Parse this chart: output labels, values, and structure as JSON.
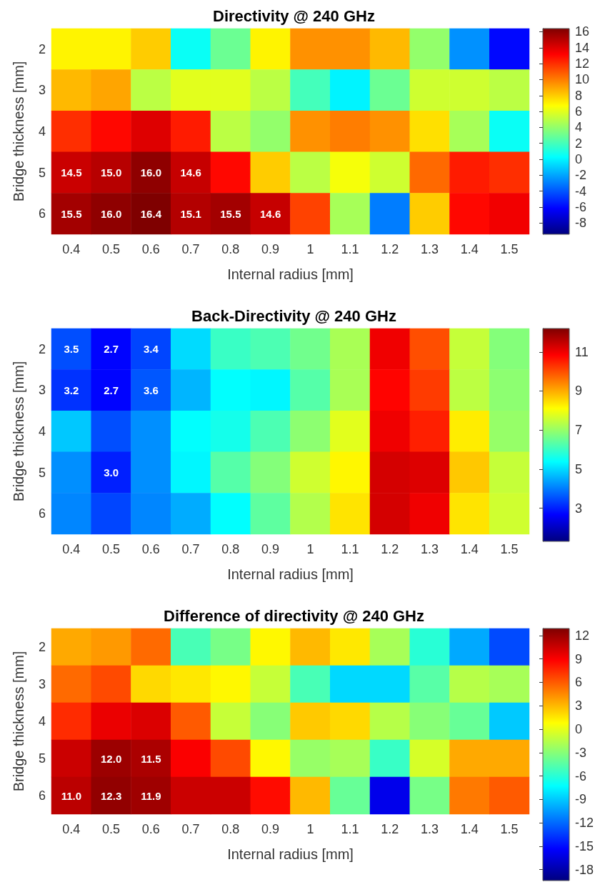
{
  "chart_data": [
    {
      "type": "heatmap",
      "title": "Directivity @ 240 GHz",
      "xlabel": "Internal radius [mm]",
      "ylabel": "Bridge thickness [mm]",
      "categories": [
        "0.4",
        "0.5",
        "0.6",
        "0.7",
        "0.8",
        "0.9",
        "1",
        "1.1",
        "1.2",
        "1.3",
        "1.4",
        "1.5"
      ],
      "y_categories": [
        "2",
        "3",
        "4",
        "5",
        "6"
      ],
      "cells": [
        [
          7,
          7,
          8,
          0.5,
          3,
          7,
          9.5,
          9.5,
          8.5,
          4,
          -2.5,
          -6
        ],
        [
          8.5,
          9,
          5,
          6,
          6,
          5,
          2,
          0,
          3,
          5.5,
          5.5,
          5
        ],
        [
          12,
          13,
          14,
          12.5,
          5,
          4,
          9.5,
          10,
          9.5,
          7.5,
          4.5,
          0.5
        ],
        [
          14.5,
          15.0,
          16.0,
          14.6,
          13,
          8,
          5,
          6.5,
          5.5,
          10.5,
          12.5,
          12
        ],
        [
          15.5,
          16.0,
          16.4,
          15.1,
          15.5,
          14.6,
          11.5,
          4.5,
          -3,
          8,
          13,
          13.5
        ]
      ],
      "cell_labels": [
        [
          null,
          null,
          null,
          null,
          null,
          null,
          null,
          null,
          null,
          null,
          null,
          null
        ],
        [
          null,
          null,
          null,
          null,
          null,
          null,
          null,
          null,
          null,
          null,
          null,
          null
        ],
        [
          null,
          null,
          null,
          null,
          null,
          null,
          null,
          null,
          null,
          null,
          null,
          null
        ],
        [
          "14.5",
          "15.0",
          "16.0",
          "14.6",
          null,
          null,
          null,
          null,
          null,
          null,
          null,
          null
        ],
        [
          "15.5",
          "16.0",
          "16.4",
          "15.1",
          "15.5",
          "14.6",
          null,
          null,
          null,
          null,
          null,
          null
        ]
      ],
      "clim": [
        -9.4,
        16.4
      ],
      "cticks": [
        -8,
        -6,
        -4,
        -2,
        0,
        2,
        4,
        6,
        8,
        10,
        12,
        14,
        16
      ]
    },
    {
      "type": "heatmap",
      "title": "Back-Directivity @ 240 GHz",
      "xlabel": "Internal radius [mm]",
      "ylabel": "Bridge thickness [mm]",
      "categories": [
        "0.4",
        "0.5",
        "0.6",
        "0.7",
        "0.8",
        "0.9",
        "1",
        "1.1",
        "1.2",
        "1.3",
        "1.4",
        "1.5"
      ],
      "y_categories": [
        "2",
        "3",
        "4",
        "5",
        "6"
      ],
      "cells": [
        [
          3.5,
          2.7,
          3.4,
          5,
          6,
          6.2,
          6.6,
          7.2,
          11,
          10,
          7.5,
          6.8
        ],
        [
          3.2,
          2.7,
          3.6,
          4.6,
          5.4,
          5.3,
          6.3,
          7.2,
          10.8,
          10.2,
          7.4,
          6.9
        ],
        [
          4.8,
          3.5,
          4.2,
          5.4,
          5.6,
          6.2,
          6.9,
          7.8,
          11,
          10.5,
          8.3,
          7
        ],
        [
          4.2,
          3.0,
          4.2,
          5.3,
          6.3,
          6.8,
          7.6,
          8.2,
          11.3,
          11.2,
          8.7,
          7.5
        ],
        [
          4.1,
          3.4,
          4.1,
          4.5,
          5.4,
          6.4,
          7.3,
          8.4,
          11.3,
          11,
          8.4,
          7.6
        ]
      ],
      "cell_labels": [
        [
          "3.5",
          "2.7",
          "3.4",
          null,
          null,
          null,
          null,
          null,
          null,
          null,
          null,
          null
        ],
        [
          "3.2",
          "2.7",
          "3.6",
          null,
          null,
          null,
          null,
          null,
          null,
          null,
          null,
          null
        ],
        [
          null,
          null,
          null,
          null,
          null,
          null,
          null,
          null,
          null,
          null,
          null,
          null
        ],
        [
          null,
          "3.0",
          null,
          null,
          null,
          null,
          null,
          null,
          null,
          null,
          null,
          null
        ],
        [
          null,
          null,
          null,
          null,
          null,
          null,
          null,
          null,
          null,
          null,
          null,
          null
        ]
      ],
      "clim": [
        1.3,
        12.2
      ],
      "cticks": [
        3,
        5,
        7,
        9,
        11
      ]
    },
    {
      "type": "heatmap",
      "title": "Difference of directivity @ 240 GHz",
      "xlabel": "Internal radius [mm]",
      "ylabel": "Bridge thickness [mm]",
      "categories": [
        "0.4",
        "0.5",
        "0.6",
        "0.7",
        "0.8",
        "0.9",
        "1",
        "1.1",
        "1.2",
        "1.3",
        "1.4",
        "1.5"
      ],
      "y_categories": [
        "2",
        "3",
        "4",
        "5",
        "6"
      ],
      "cells": [
        [
          3.5,
          4,
          5.5,
          -5,
          -3.5,
          1,
          3,
          1.5,
          -2,
          -6,
          -10,
          -13
        ],
        [
          5.5,
          6.5,
          2,
          1.5,
          1,
          -1,
          -5,
          -8.5,
          -8.5,
          -4.5,
          -1.5,
          -2
        ],
        [
          7.5,
          9.5,
          10,
          6,
          -1,
          -3,
          2.5,
          2,
          -1.5,
          -3,
          -4,
          -9
        ],
        [
          10.5,
          12.0,
          11.5,
          9,
          6.5,
          1,
          -2.5,
          -2,
          -5.5,
          -0.5,
          3.5,
          3.5
        ],
        [
          11.0,
          12.3,
          11.9,
          10.5,
          10.5,
          8.5,
          3,
          -4,
          -16,
          -3.5,
          5,
          6
        ]
      ],
      "cell_labels": [
        [
          null,
          null,
          null,
          null,
          null,
          null,
          null,
          null,
          null,
          null,
          null,
          null
        ],
        [
          null,
          null,
          null,
          null,
          null,
          null,
          null,
          null,
          null,
          null,
          null,
          null
        ],
        [
          null,
          null,
          null,
          null,
          null,
          null,
          null,
          null,
          null,
          null,
          null,
          null
        ],
        [
          null,
          "12.0",
          "11.5",
          null,
          null,
          null,
          null,
          null,
          null,
          null,
          null,
          null
        ],
        [
          "11.0",
          "12.3",
          "11.9",
          null,
          null,
          null,
          null,
          null,
          null,
          null,
          null,
          null
        ]
      ],
      "clim": [
        -19.4,
        12.9
      ],
      "cticks": [
        -18,
        -15,
        -12,
        -9,
        -6,
        -3,
        0,
        3,
        6,
        9,
        12
      ]
    }
  ]
}
